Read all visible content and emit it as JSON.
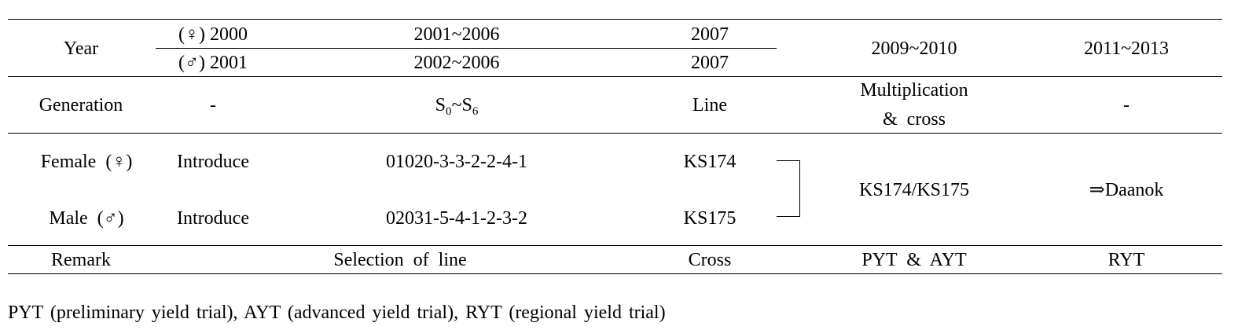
{
  "table": {
    "year": {
      "label": "Year",
      "female_intro": "(♀) 2000",
      "male_intro": "(♂) 2001",
      "female_selection": "2001~2006",
      "male_selection": "2002~2006",
      "female_cross": "2007",
      "male_cross": "2007",
      "multiplication": "2009~2010",
      "regional": "2011~2013"
    },
    "generation": {
      "label": "Generation",
      "intro": "-",
      "selection_base": "S",
      "selection_sub_start": "0",
      "selection_sep": "~S",
      "selection_sub_end": "6",
      "cross": "Line",
      "multiplication_line1": "Multiplication",
      "multiplication_line2": "& cross",
      "regional": "-"
    },
    "female": {
      "label": "Female (♀)",
      "intro": "Introduce",
      "selection": "01020-3-3-2-2-4-1",
      "cross": "KS174"
    },
    "male": {
      "label": "Male (♂)",
      "intro": "Introduce",
      "selection": "02031-5-4-1-2-3-2",
      "cross": "KS175"
    },
    "combined_cross": "KS174/KS175",
    "result": "⇒Daanok",
    "remark": {
      "label": "Remark",
      "selection": "Selection of line",
      "cross": "Cross",
      "multiplication": "PYT & AYT",
      "regional": "RYT"
    }
  },
  "footnote": "PYT (preliminary yield trial), AYT (advanced yield trial), RYT (regional yield trial)"
}
